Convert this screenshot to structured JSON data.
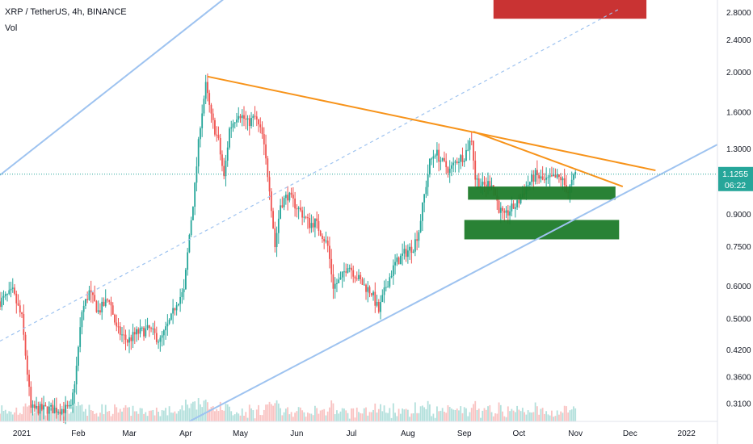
{
  "header": {
    "symbol_line": "XRP / TetherUS, 4h, BINANCE",
    "volume_label": "Vol"
  },
  "price_tag": {
    "price": "1.1255",
    "countdown": "06:22",
    "color": "#26a69a"
  },
  "colors": {
    "up": "#26a69a",
    "down": "#ef5350",
    "channel": "#9ec3f0",
    "trendline": "#f7931a",
    "support_zone": "#1e7b2a",
    "resistance_zone": "#c62828"
  },
  "chart_data": {
    "type": "candlestick",
    "y_scale": "log",
    "ylim": [
      0.28,
      3.0
    ],
    "yticks": [
      "2.8000",
      "2.4000",
      "2.0000",
      "1.6000",
      "1.3000",
      "0.9000",
      "0.7500",
      "0.6000",
      "0.5000",
      "0.4200",
      "0.3600",
      "0.3100"
    ],
    "ytick_values": [
      2.8,
      2.4,
      2.0,
      1.6,
      1.3,
      0.9,
      0.75,
      0.6,
      0.5,
      0.42,
      0.36,
      0.31
    ],
    "xticks": [
      "2021",
      "Feb",
      "Mar",
      "Apr",
      "May",
      "Jun",
      "Jul",
      "Aug",
      "Sep",
      "Oct",
      "Nov",
      "Dec",
      "2022"
    ],
    "xtick_days": [
      0,
      31,
      59,
      90,
      120,
      151,
      181,
      212,
      243,
      273,
      304,
      334,
      365
    ],
    "x_units": "days since 2021-01-01",
    "xlim": [
      -12,
      382
    ],
    "current_price": 1.1255,
    "price_path": [
      {
        "x": -12,
        "y": 0.55
      },
      {
        "x": -5,
        "y": 0.58
      },
      {
        "x": 0,
        "y": 0.5
      },
      {
        "x": 5,
        "y": 0.3
      },
      {
        "x": 12,
        "y": 0.3
      },
      {
        "x": 20,
        "y": 0.3
      },
      {
        "x": 27,
        "y": 0.3
      },
      {
        "x": 30,
        "y": 0.38
      },
      {
        "x": 33,
        "y": 0.52
      },
      {
        "x": 37,
        "y": 0.58
      },
      {
        "x": 42,
        "y": 0.52
      },
      {
        "x": 48,
        "y": 0.56
      },
      {
        "x": 52,
        "y": 0.47
      },
      {
        "x": 58,
        "y": 0.44
      },
      {
        "x": 63,
        "y": 0.46
      },
      {
        "x": 70,
        "y": 0.47
      },
      {
        "x": 76,
        "y": 0.44
      },
      {
        "x": 82,
        "y": 0.5
      },
      {
        "x": 85,
        "y": 0.55
      },
      {
        "x": 89,
        "y": 0.58
      },
      {
        "x": 92,
        "y": 0.8
      },
      {
        "x": 95,
        "y": 1.05
      },
      {
        "x": 98,
        "y": 1.5
      },
      {
        "x": 101,
        "y": 1.85
      },
      {
        "x": 104,
        "y": 1.55
      },
      {
        "x": 108,
        "y": 1.35
      },
      {
        "x": 111,
        "y": 1.1
      },
      {
        "x": 114,
        "y": 1.45
      },
      {
        "x": 119,
        "y": 1.6
      },
      {
        "x": 124,
        "y": 1.5
      },
      {
        "x": 128,
        "y": 1.55
      },
      {
        "x": 132,
        "y": 1.4
      },
      {
        "x": 136,
        "y": 1.05
      },
      {
        "x": 139,
        "y": 0.75
      },
      {
        "x": 142,
        "y": 0.95
      },
      {
        "x": 146,
        "y": 1.0
      },
      {
        "x": 150,
        "y": 0.95
      },
      {
        "x": 154,
        "y": 0.9
      },
      {
        "x": 158,
        "y": 0.85
      },
      {
        "x": 161,
        "y": 0.86
      },
      {
        "x": 165,
        "y": 0.8
      },
      {
        "x": 168,
        "y": 0.75
      },
      {
        "x": 171,
        "y": 0.6
      },
      {
        "x": 175,
        "y": 0.62
      },
      {
        "x": 179,
        "y": 0.68
      },
      {
        "x": 183,
        "y": 0.64
      },
      {
        "x": 188,
        "y": 0.6
      },
      {
        "x": 192,
        "y": 0.58
      },
      {
        "x": 196,
        "y": 0.52
      },
      {
        "x": 200,
        "y": 0.6
      },
      {
        "x": 205,
        "y": 0.68
      },
      {
        "x": 210,
        "y": 0.72
      },
      {
        "x": 215,
        "y": 0.75
      },
      {
        "x": 218,
        "y": 0.82
      },
      {
        "x": 221,
        "y": 1.0
      },
      {
        "x": 224,
        "y": 1.2
      },
      {
        "x": 227,
        "y": 1.28
      },
      {
        "x": 231,
        "y": 1.2
      },
      {
        "x": 235,
        "y": 1.15
      },
      {
        "x": 239,
        "y": 1.22
      },
      {
        "x": 243,
        "y": 1.25
      },
      {
        "x": 247,
        "y": 1.38
      },
      {
        "x": 249,
        "y": 1.1
      },
      {
        "x": 253,
        "y": 1.05
      },
      {
        "x": 258,
        "y": 1.08
      },
      {
        "x": 262,
        "y": 0.93
      },
      {
        "x": 265,
        "y": 0.88
      },
      {
        "x": 268,
        "y": 0.92
      },
      {
        "x": 272,
        "y": 0.95
      },
      {
        "x": 277,
        "y": 1.05
      },
      {
        "x": 282,
        "y": 1.12
      },
      {
        "x": 287,
        "y": 1.08
      },
      {
        "x": 292,
        "y": 1.1
      },
      {
        "x": 296,
        "y": 1.1
      },
      {
        "x": 300,
        "y": 1.02
      },
      {
        "x": 304,
        "y": 1.1255
      }
    ],
    "lines": [
      {
        "name": "channel-upper",
        "style": "solid",
        "color": "#9ec3f0",
        "from": [
          -12,
          1.12
        ],
        "to": [
          122,
          3.3
        ]
      },
      {
        "name": "channel-mid",
        "style": "dashed",
        "color": "#9ec3f0",
        "from": [
          -12,
          0.44
        ],
        "to": [
          328,
          2.85
        ]
      },
      {
        "name": "channel-lower",
        "style": "solid",
        "color": "#9ec3f0",
        "from": [
          92,
          0.28
        ],
        "to": [
          382,
          1.33
        ]
      },
      {
        "name": "trend-long",
        "style": "solid",
        "color": "#f7931a",
        "from": [
          102,
          1.95
        ],
        "to": [
          348,
          1.15
        ]
      },
      {
        "name": "trend-short",
        "style": "solid",
        "color": "#f7931a",
        "from": [
          248,
          1.43
        ],
        "to": [
          330,
          1.05
        ]
      }
    ],
    "zones": [
      {
        "name": "support-upper",
        "color": "#1e7b2a",
        "x0": 245,
        "x1": 326,
        "y0": 0.975,
        "y1": 1.05
      },
      {
        "name": "support-lower",
        "color": "#1e7b2a",
        "x0": 243,
        "x1": 328,
        "y0": 0.78,
        "y1": 0.87
      },
      {
        "name": "resistance",
        "color": "#c62828",
        "x0": 259,
        "x1": 343,
        "y0": 2.7,
        "y1": 3.0
      }
    ]
  }
}
